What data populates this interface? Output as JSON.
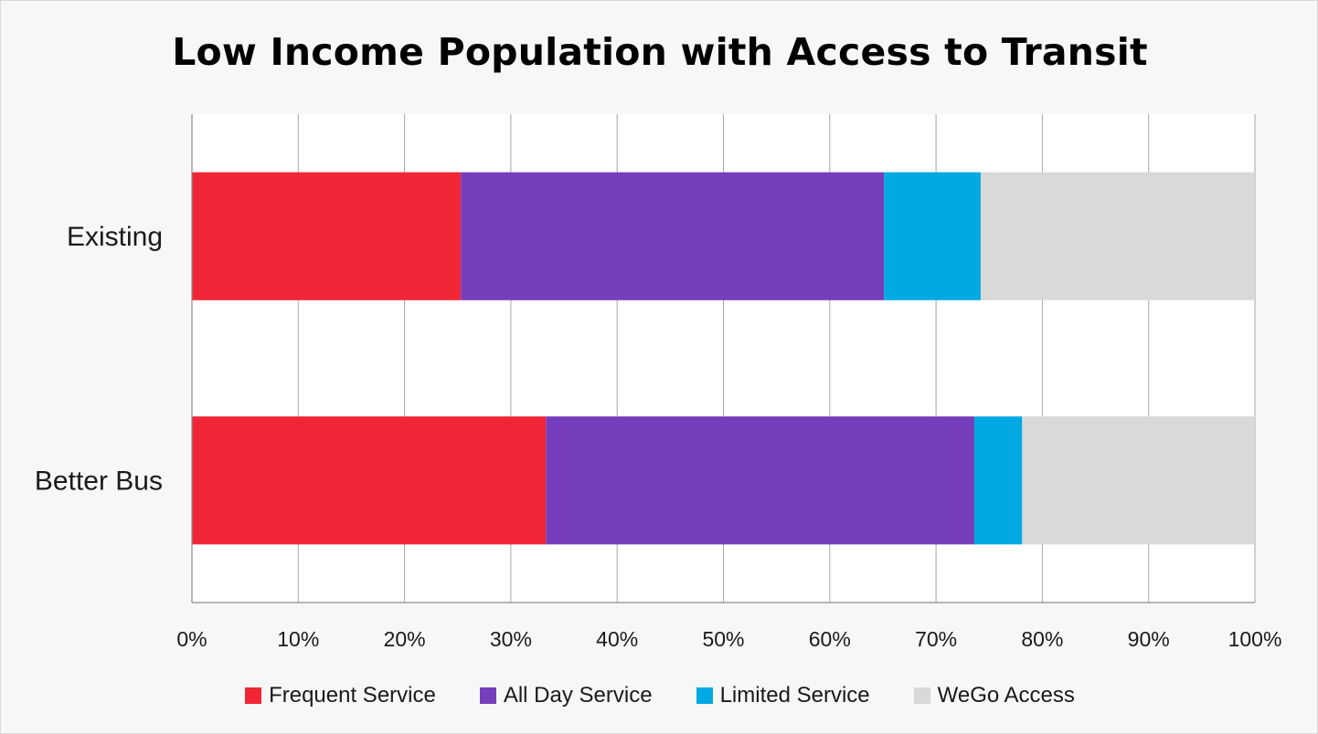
{
  "chart_data": {
    "type": "bar",
    "orientation": "horizontal",
    "stacked": true,
    "title": "Low Income Population with Access to Transit",
    "categories": [
      "Existing",
      "Better Bus"
    ],
    "series": [
      {
        "name": "Frequent Service",
        "color": "#f02637",
        "values": [
          25.3,
          33.3
        ]
      },
      {
        "name": "All Day Service",
        "color": "#763dbc",
        "values": [
          39.8,
          40.3
        ]
      },
      {
        "name": "Limited Service",
        "color": "#00a9e3",
        "values": [
          9.1,
          4.5
        ]
      },
      {
        "name": "WeGo Access",
        "color": "#d9d9d9",
        "values": [
          25.8,
          21.9
        ]
      }
    ],
    "xlim": [
      0,
      100
    ],
    "xticks": [
      "0%",
      "10%",
      "20%",
      "30%",
      "40%",
      "50%",
      "60%",
      "70%",
      "80%",
      "90%",
      "100%"
    ],
    "grid": true,
    "legend_position": "bottom"
  }
}
